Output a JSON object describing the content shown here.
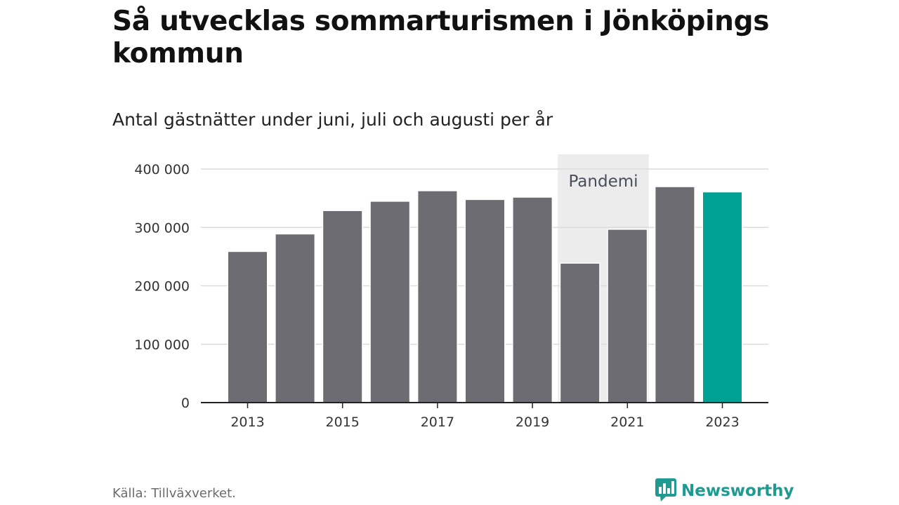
{
  "title": "Så utvecklas sommarturismen i Jönköpings kommun",
  "subtitle": "Antal gästnätter under juni, juli och augusti per år",
  "source": "Källa: Tillväxverket.",
  "brand": {
    "name": "Newsworthy",
    "icon": "newsworthy-logo-icon",
    "color": "#1f9a91"
  },
  "colors": {
    "bar": "#6d6c72",
    "highlight": "#00a195",
    "band": "#ececec",
    "grid": "#dcdcdc",
    "axis": "#222222"
  },
  "chart_data": {
    "type": "bar",
    "categories": [
      "2013",
      "2014",
      "2015",
      "2016",
      "2017",
      "2018",
      "2019",
      "2020",
      "2021",
      "2022",
      "2023"
    ],
    "values": [
      258000,
      288000,
      328000,
      344000,
      362000,
      347000,
      351000,
      238000,
      296000,
      369000,
      360000
    ],
    "highlight_index": 10,
    "ylim": [
      0,
      400000
    ],
    "yticks": [
      0,
      100000,
      200000,
      300000,
      400000
    ],
    "ytick_labels": [
      "0",
      "100 000",
      "200 000",
      "300 000",
      "400 000"
    ],
    "xtick_labels": [
      "2013",
      "2015",
      "2017",
      "2019",
      "2021",
      "2023"
    ],
    "xlabel": "",
    "ylabel": "",
    "grid": true,
    "annotation": {
      "label": "Pandemi",
      "from": "2020",
      "to": "2021"
    }
  }
}
